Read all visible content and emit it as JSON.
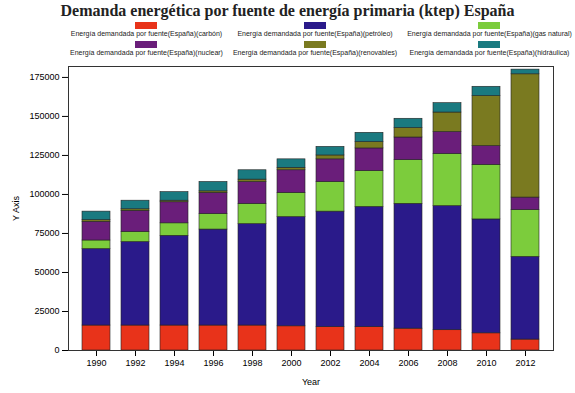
{
  "chart_data": {
    "type": "bar",
    "title": "Demanda energética por fuente de energía primaria (ktep) España",
    "x_label": "Year",
    "y_label": "Y Axis",
    "stacked": true,
    "grid": false,
    "legend": "top",
    "categories": [
      "1990",
      "1992",
      "1994",
      "1996",
      "1998",
      "2000",
      "2002",
      "2004",
      "2006",
      "2008",
      "2010",
      "2012"
    ],
    "series": [
      {
        "name": "Energía demandada por fuente(España)(carbón)",
        "color": "#e8331a",
        "values": [
          16000,
          16000,
          16000,
          16000,
          16000,
          15500,
          15000,
          15000,
          14000,
          13000,
          11000,
          7000
        ]
      },
      {
        "name": "Energía demandada por fuente(España)(petróleo)",
        "color": "#2a1a8a",
        "values": [
          49000,
          53500,
          57500,
          61500,
          65000,
          70000,
          74000,
          77000,
          80000,
          79500,
          73000,
          53000
        ]
      },
      {
        "name": "Energía demandada por fuente(España)(gas natural)",
        "color": "#7ccc3c",
        "values": [
          5500,
          6500,
          8000,
          10000,
          13000,
          15500,
          19000,
          23000,
          28000,
          33500,
          35000,
          30000
        ]
      },
      {
        "name": "Energía demandada por fuente(España)(nuclear)",
        "color": "#6a1e7a",
        "values": [
          12000,
          13500,
          13500,
          13500,
          14000,
          14500,
          14500,
          14500,
          14500,
          14000,
          12000,
          8000
        ]
      },
      {
        "name": "Energía demandada por fuente(España)(renovables)",
        "color": "#7a7a20",
        "values": [
          1000,
          1000,
          1000,
          1000,
          1500,
          1500,
          2500,
          4000,
          6000,
          12500,
          32000,
          79000
        ]
      },
      {
        "name": "Energía demandada por fuente(España)(hidráulica)",
        "color": "#1a7a80",
        "values": [
          5500,
          5500,
          5500,
          6000,
          6000,
          5500,
          5500,
          6000,
          6000,
          6000,
          6000,
          3000
        ]
      }
    ],
    "ylim": [
      0,
      182000
    ],
    "yticks": [
      0,
      25000,
      50000,
      75000,
      100000,
      125000,
      150000,
      175000
    ]
  }
}
